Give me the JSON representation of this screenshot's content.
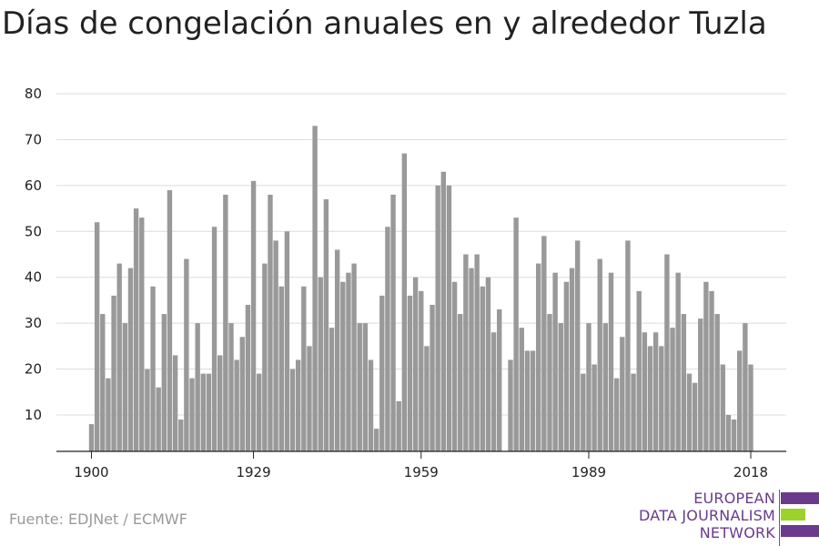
{
  "title": "Días de congelación anuales en y alrededor Tuzla",
  "source": "Fuente: EDJNet / ECMWF",
  "logo": {
    "lines": [
      "EUROPEAN",
      "DATA JOURNALISM",
      "NETWORK"
    ],
    "colors": {
      "purple": "#6a3a8c",
      "green": "#9bd22b"
    }
  },
  "chart_data": {
    "type": "bar",
    "title": "Días de congelación anuales en y alrededor Tuzla",
    "xlabel": "",
    "ylabel": "",
    "ylim": [
      2,
      80
    ],
    "yticks": [
      10,
      20,
      30,
      40,
      50,
      60,
      70,
      80
    ],
    "xticks": [
      1900,
      1929,
      1959,
      1989,
      2018
    ],
    "bar_color": "#999999",
    "grid": true,
    "x": [
      1900,
      1901,
      1902,
      1903,
      1904,
      1905,
      1906,
      1907,
      1908,
      1909,
      1910,
      1911,
      1912,
      1913,
      1914,
      1915,
      1916,
      1917,
      1918,
      1919,
      1920,
      1921,
      1922,
      1923,
      1924,
      1925,
      1926,
      1927,
      1928,
      1929,
      1930,
      1931,
      1932,
      1933,
      1934,
      1935,
      1936,
      1937,
      1938,
      1939,
      1940,
      1941,
      1942,
      1943,
      1944,
      1945,
      1946,
      1947,
      1948,
      1949,
      1950,
      1951,
      1952,
      1953,
      1954,
      1955,
      1956,
      1957,
      1958,
      1959,
      1960,
      1961,
      1962,
      1963,
      1964,
      1965,
      1966,
      1967,
      1968,
      1969,
      1970,
      1971,
      1972,
      1973,
      1974,
      1975,
      1976,
      1977,
      1978,
      1979,
      1980,
      1981,
      1982,
      1983,
      1984,
      1985,
      1986,
      1987,
      1988,
      1989,
      1990,
      1991,
      1992,
      1993,
      1994,
      1995,
      1996,
      1997,
      1998,
      1999,
      2000,
      2001,
      2002,
      2003,
      2004,
      2005,
      2006,
      2007,
      2008,
      2009,
      2010,
      2011,
      2012,
      2013,
      2014,
      2015,
      2016,
      2017,
      2018
    ],
    "values": [
      8,
      52,
      32,
      18,
      36,
      43,
      30,
      42,
      55,
      53,
      20,
      38,
      16,
      32,
      59,
      23,
      9,
      44,
      18,
      30,
      19,
      19,
      51,
      23,
      58,
      30,
      22,
      27,
      34,
      61,
      19,
      43,
      58,
      48,
      38,
      50,
      20,
      22,
      38,
      25,
      73,
      40,
      57,
      29,
      46,
      39,
      41,
      43,
      30,
      30,
      22,
      7,
      36,
      51,
      58,
      13,
      67,
      36,
      40,
      37,
      25,
      34,
      60,
      63,
      60,
      39,
      32,
      45,
      42,
      45,
      38,
      40,
      28,
      33,
      2,
      22,
      53,
      29,
      24,
      24,
      43,
      49,
      32,
      41,
      30,
      39,
      42,
      48,
      19,
      30,
      21,
      44,
      30,
      41,
      18,
      27,
      48,
      19,
      37,
      28,
      25,
      28,
      25,
      45,
      29,
      41,
      32,
      19,
      17,
      31,
      39,
      37,
      32,
      21,
      10,
      9,
      24,
      30,
      21
    ]
  }
}
